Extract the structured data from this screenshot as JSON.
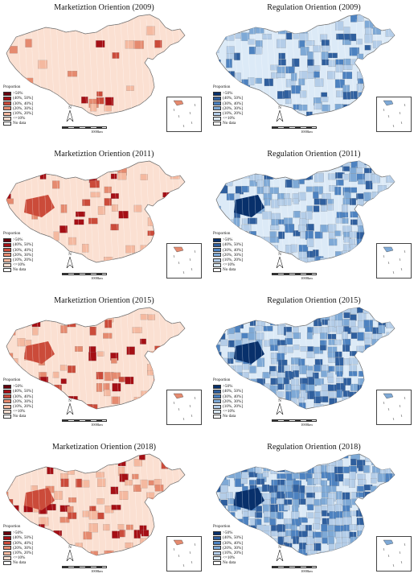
{
  "legend_title": "Proportion",
  "scale_label": "1000km",
  "north_label": "N",
  "legend_classes": [
    ">50%",
    "(40%, 50%]",
    "(30%, 40%]",
    "(20%, 30%]",
    "(10%, 20%]",
    "<=10%",
    "No data"
  ],
  "palettes": {
    "marketization": [
      "#67000d",
      "#a50f15",
      "#cb4b3a",
      "#e58a6f",
      "#f4b9a0",
      "#fbe0d2",
      "#ffffff"
    ],
    "regulation": [
      "#08306b",
      "#2f5f9e",
      "#4d82c0",
      "#7ea9d6",
      "#b4cde8",
      "#dceaf7",
      "#ffffff"
    ]
  },
  "panels": [
    {
      "title": "Marketiztion Oriention (2009)",
      "scheme": "marketization",
      "year": "2009"
    },
    {
      "title": "Regulation Oriention (2009)",
      "scheme": "regulation",
      "year": "2009"
    },
    {
      "title": "Marketiztion Oriention (2011)",
      "scheme": "marketization",
      "year": "2011"
    },
    {
      "title": "Regulation Oriention (2011)",
      "scheme": "regulation",
      "year": "2011"
    },
    {
      "title": "Marketiztion Oriention (2015)",
      "scheme": "marketization",
      "year": "2015"
    },
    {
      "title": "Regulation Oriention (2015)",
      "scheme": "regulation",
      "year": "2015"
    },
    {
      "title": "Marketization Oriention (2018)",
      "scheme": "marketization",
      "year": "2018"
    },
    {
      "title": "Regulation Oriention (2018)",
      "scheme": "regulation",
      "year": "2018"
    }
  ]
}
